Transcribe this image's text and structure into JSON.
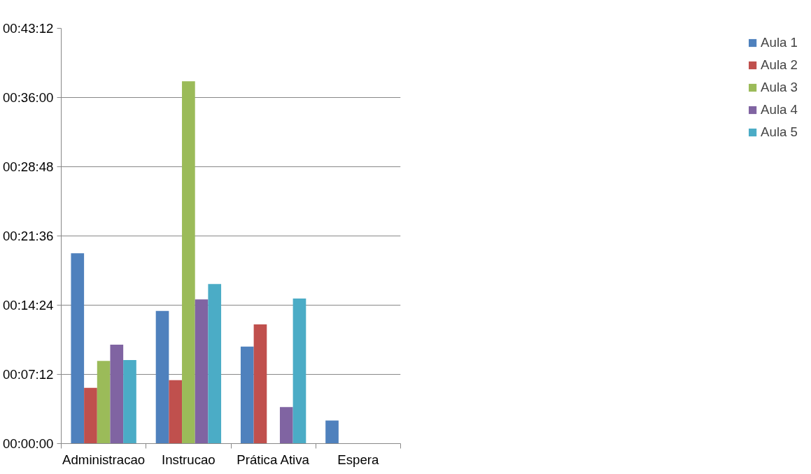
{
  "chart_data": {
    "type": "bar",
    "categories": [
      "Administracao",
      "Instrucao",
      "Prática Ativa",
      "Espera"
    ],
    "series": [
      {
        "name": "Aula 1",
        "color": "#4f81bd",
        "values": [
          19.8,
          13.8,
          10.1,
          2.4
        ]
      },
      {
        "name": "Aula 2",
        "color": "#c0504d",
        "values": [
          5.8,
          6.6,
          12.4,
          null
        ]
      },
      {
        "name": "Aula 3",
        "color": "#9bbb59",
        "values": [
          8.6,
          37.7,
          null,
          null
        ]
      },
      {
        "name": "Aula 4",
        "color": "#8064a2",
        "values": [
          10.3,
          15.0,
          3.8,
          null
        ]
      },
      {
        "name": "Aula 5",
        "color": "#4bacc6",
        "values": [
          8.7,
          16.6,
          15.1,
          null
        ]
      }
    ],
    "ylim": [
      0,
      43.2
    ],
    "yticks": [
      {
        "value": 0,
        "label": "00:00:00"
      },
      {
        "value": 7.2,
        "label": "00:07:12"
      },
      {
        "value": 14.4,
        "label": "00:14:24"
      },
      {
        "value": 21.6,
        "label": "00:21:36"
      },
      {
        "value": 28.8,
        "label": "00:28:48"
      },
      {
        "value": 36.0,
        "label": "00:36:00"
      },
      {
        "value": 43.2,
        "label": "00:43:12"
      }
    ],
    "grid": "y",
    "legend": "right"
  }
}
